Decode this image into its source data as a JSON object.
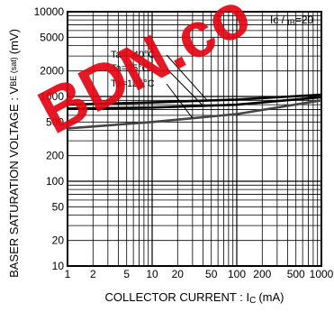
{
  "chart_data": {
    "type": "line",
    "xlabel": "COLLECTOR CURRENT : I",
    "xlabel_sub": "C",
    "xlabel_unit": "(mA)",
    "ylabel": "BASER SATURATION VOLTAGE : V",
    "ylabel_sub": "BE (sat)",
    "ylabel_unit": "(mV)",
    "condition_main": "Ic / ",
    "condition_sub": "IB",
    "condition_rest": "=20",
    "xscale": "log",
    "yscale": "log",
    "xlim": [
      1,
      1000
    ],
    "ylim": [
      10,
      10000
    ],
    "grid": true,
    "x_ticks": [
      "1",
      "2",
      "5",
      "10",
      "20",
      "50",
      "100",
      "200",
      "500",
      "1000"
    ],
    "y_ticks": [
      "10",
      "20",
      "50",
      "100",
      "200",
      "500",
      "1000",
      "2000",
      "5000",
      "10000"
    ],
    "series": [
      {
        "name": "Ta= -40°C",
        "x": [
          1,
          10,
          100,
          1000
        ],
        "values": [
          800,
          850,
          920,
          1050
        ]
      },
      {
        "name": "Ta=25°C",
        "x": [
          1,
          10,
          100,
          1000
        ],
        "values": [
          720,
          740,
          800,
          980
        ]
      },
      {
        "name": "Ta=125°C",
        "x": [
          1,
          10,
          100,
          1000
        ],
        "values": [
          420,
          500,
          620,
          900
        ]
      }
    ]
  },
  "watermark": {
    "text": "BDN.co",
    "color": "#e30613"
  }
}
